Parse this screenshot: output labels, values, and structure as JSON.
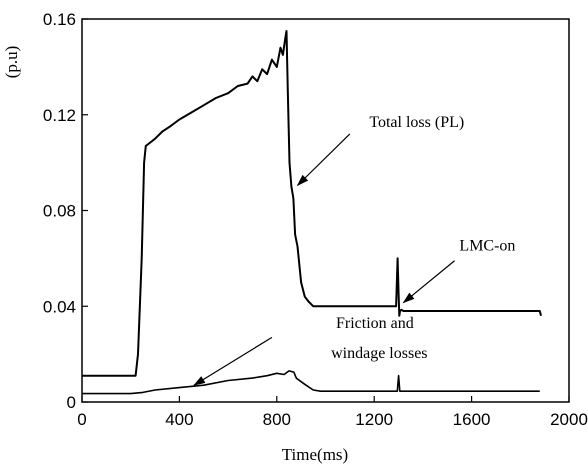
{
  "chart_data": {
    "type": "line",
    "xlabel": "Time(ms)",
    "ylabel": "(p.u)",
    "xlim": [
      0,
      2000
    ],
    "ylim": [
      0,
      0.16
    ],
    "xticks": [
      0,
      400,
      800,
      1200,
      1600,
      2000
    ],
    "yticks": [
      0,
      0.04,
      0.08,
      0.12,
      0.16
    ],
    "xtick_labels": [
      "0",
      "400",
      "800",
      "1200",
      "1600",
      "2000"
    ],
    "ytick_labels": [
      "0",
      "0.04",
      "0.08",
      "0.12",
      "0.16"
    ],
    "grid": false,
    "legend": "none",
    "series": [
      {
        "name": "Total loss (PL)",
        "color": "#000000",
        "x": [
          0,
          220,
          230,
          245,
          255,
          262,
          275,
          300,
          330,
          360,
          400,
          450,
          500,
          550,
          600,
          640,
          680,
          700,
          720,
          740,
          760,
          780,
          800,
          815,
          825,
          835,
          840,
          845,
          852,
          860,
          868,
          875,
          885,
          900,
          915,
          930,
          950,
          1000,
          1100,
          1200,
          1290,
          1296,
          1300,
          1303,
          1306,
          1312,
          1320,
          1400,
          1600,
          1800,
          1880,
          1885
        ],
        "y": [
          0.011,
          0.011,
          0.02,
          0.06,
          0.1,
          0.107,
          0.108,
          0.11,
          0.113,
          0.115,
          0.118,
          0.121,
          0.124,
          0.127,
          0.129,
          0.132,
          0.133,
          0.136,
          0.134,
          0.139,
          0.137,
          0.143,
          0.14,
          0.148,
          0.145,
          0.152,
          0.155,
          0.13,
          0.1,
          0.09,
          0.085,
          0.07,
          0.065,
          0.05,
          0.044,
          0.042,
          0.04,
          0.04,
          0.04,
          0.04,
          0.04,
          0.06,
          0.045,
          0.036,
          0.038,
          0.0385,
          0.038,
          0.038,
          0.038,
          0.038,
          0.038,
          0.036
        ]
      },
      {
        "name": "Friction and windage losses",
        "color": "#000000",
        "x": [
          0,
          200,
          250,
          300,
          400,
          500,
          600,
          700,
          760,
          800,
          830,
          850,
          870,
          880,
          900,
          920,
          950,
          980,
          1000,
          1100,
          1200,
          1295,
          1300,
          1305,
          1310,
          1400,
          1600,
          1800,
          1880
        ],
        "y": [
          0.0035,
          0.0035,
          0.004,
          0.005,
          0.006,
          0.007,
          0.009,
          0.01,
          0.011,
          0.012,
          0.0115,
          0.013,
          0.0125,
          0.01,
          0.0085,
          0.007,
          0.005,
          0.0045,
          0.0045,
          0.0045,
          0.0045,
          0.0045,
          0.011,
          0.0045,
          0.0045,
          0.0045,
          0.0045,
          0.0045,
          0.0045
        ]
      }
    ],
    "annotations": [
      {
        "text": "Total loss (PL)",
        "text_at": [
          1180,
          0.1148
        ],
        "arrow_from": [
          1100,
          0.112
        ],
        "arrow_to": [
          885,
          0.0905
        ]
      },
      {
        "text": "LMC-on",
        "text_at": [
          1550,
          0.0632
        ],
        "arrow_from": [
          1530,
          0.059
        ],
        "arrow_to": [
          1320,
          0.0415
        ]
      },
      {
        "text": "Friction and",
        "text_at": [
          1043,
          0.031
        ],
        "arrow_from": [
          780,
          0.027
        ],
        "arrow_to": [
          460,
          0.007
        ]
      },
      {
        "text": "windage losses",
        "text_at": [
          1023,
          0.0183
        ]
      }
    ]
  }
}
